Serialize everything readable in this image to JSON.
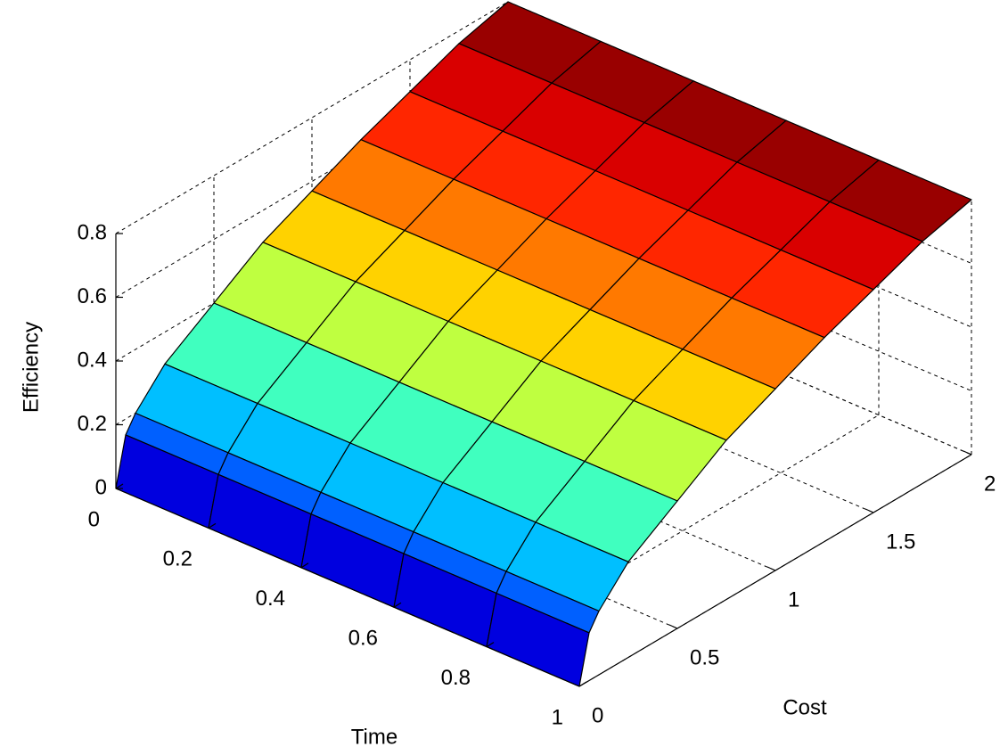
{
  "chart_data": {
    "type": "surface",
    "xlabel": "Time",
    "ylabel": "Cost",
    "zlabel": "Efficiency",
    "x": [
      0,
      0.2,
      0.4,
      0.6,
      0.8,
      1
    ],
    "y": [
      0,
      0.05,
      0.1,
      0.25,
      0.5,
      0.75,
      1,
      1.25,
      1.5,
      1.75,
      2
    ],
    "values": [
      [
        0,
        0.15,
        0.2,
        0.3,
        0.4,
        0.5,
        0.57,
        0.64,
        0.7,
        0.76,
        0.8
      ],
      [
        0,
        0.15,
        0.2,
        0.3,
        0.4,
        0.5,
        0.57,
        0.64,
        0.7,
        0.76,
        0.8
      ],
      [
        0,
        0.15,
        0.2,
        0.3,
        0.4,
        0.5,
        0.57,
        0.64,
        0.7,
        0.76,
        0.8
      ],
      [
        0,
        0.15,
        0.2,
        0.3,
        0.4,
        0.5,
        0.57,
        0.64,
        0.7,
        0.76,
        0.8
      ],
      [
        0,
        0.15,
        0.2,
        0.3,
        0.4,
        0.5,
        0.57,
        0.64,
        0.7,
        0.76,
        0.8
      ],
      [
        0,
        0.15,
        0.2,
        0.3,
        0.4,
        0.5,
        0.57,
        0.64,
        0.7,
        0.76,
        0.8
      ]
    ],
    "xlim": [
      0,
      1
    ],
    "ylim": [
      0,
      2
    ],
    "zlim": [
      0,
      0.8
    ],
    "xticks": [
      0,
      0.2,
      0.4,
      0.6,
      0.8,
      1
    ],
    "yticks": [
      0,
      0.5,
      1,
      1.5,
      2
    ],
    "zticks": [
      0,
      0.2,
      0.4,
      0.6,
      0.8
    ],
    "colormap": "jet",
    "grid": true
  }
}
